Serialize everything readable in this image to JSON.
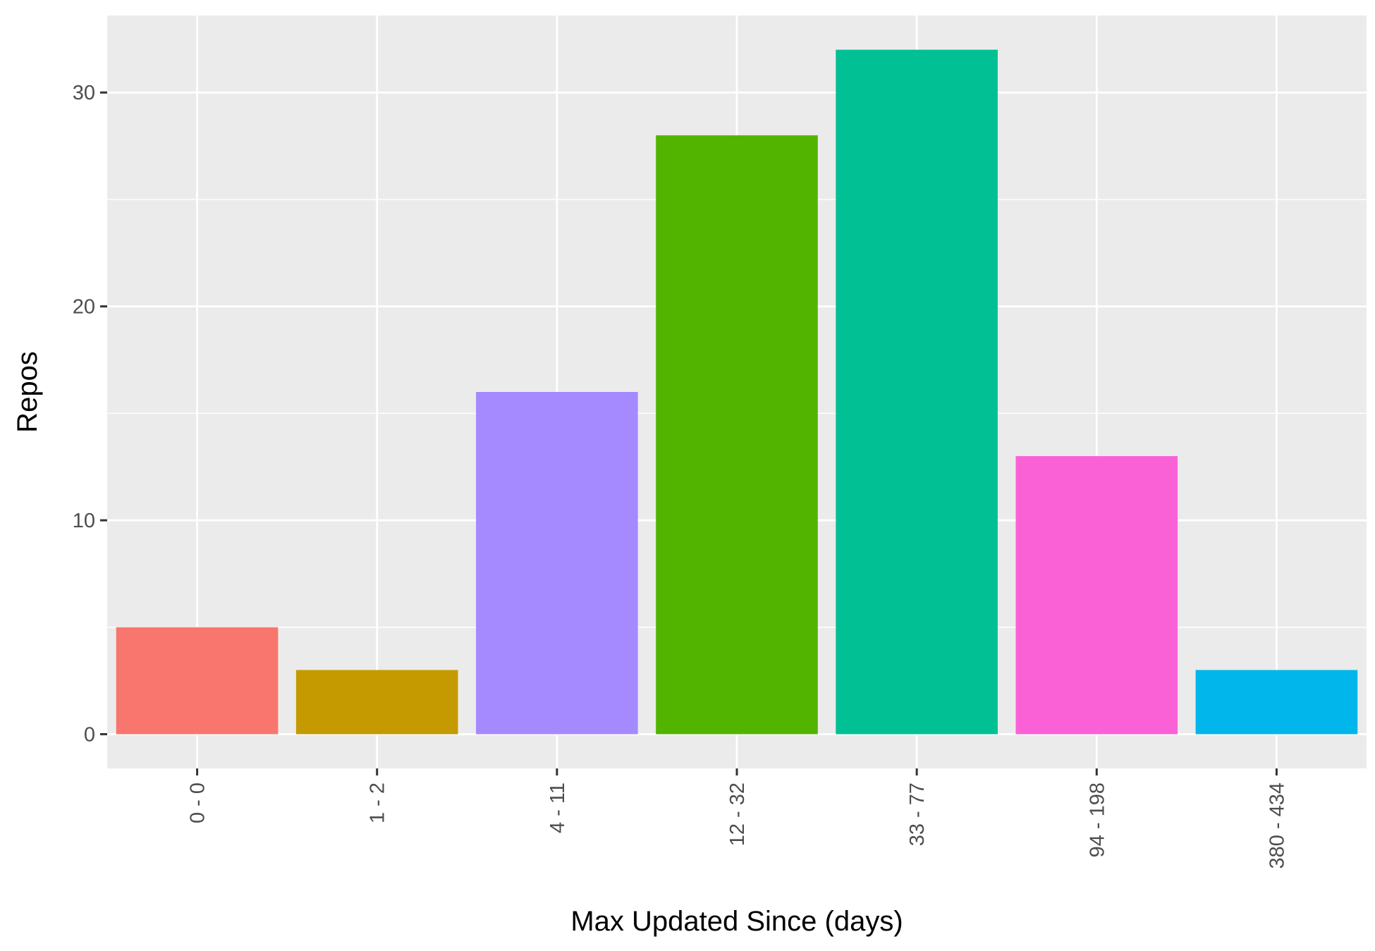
{
  "chart_data": {
    "type": "bar",
    "title": "",
    "xlabel": "Max Updated Since (days)",
    "ylabel": "Repos",
    "categories": [
      "0 - 0",
      "1 - 2",
      "4 - 11",
      "12 - 32",
      "33 - 77",
      "94 - 198",
      "380 - 434"
    ],
    "values": [
      5,
      3,
      16,
      28,
      32,
      13,
      3
    ],
    "colors": [
      "#F8766D",
      "#C49A00",
      "#A58AFF",
      "#53B400",
      "#00C094",
      "#FB61D7",
      "#00B6EB"
    ],
    "ylim": [
      -1.6,
      33.6
    ],
    "yticks": [
      0,
      10,
      20,
      30
    ],
    "ytick_labels": [
      "0",
      "10",
      "20",
      "30"
    ],
    "grid": true,
    "panel_background": "#EBEBEB",
    "grid_color": "#FFFFFF",
    "legend": "none"
  }
}
